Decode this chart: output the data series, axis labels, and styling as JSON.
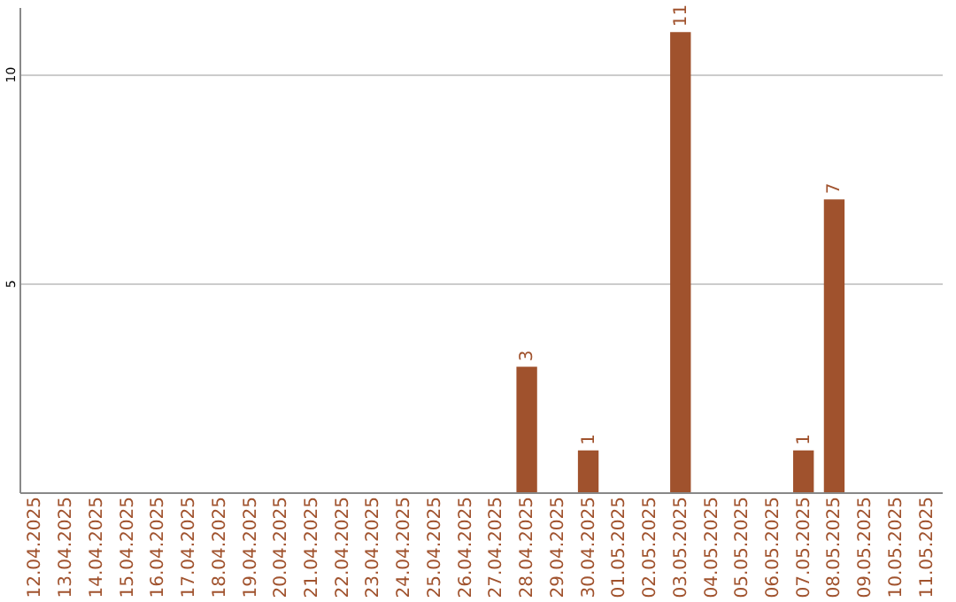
{
  "chart_data": {
    "type": "bar",
    "categories": [
      "12.04.2025",
      "13.04.2025",
      "14.04.2025",
      "15.04.2025",
      "16.04.2025",
      "17.04.2025",
      "18.04.2025",
      "19.04.2025",
      "20.04.2025",
      "21.04.2025",
      "22.04.2025",
      "23.04.2025",
      "24.04.2025",
      "25.04.2025",
      "26.04.2025",
      "27.04.2025",
      "28.04.2025",
      "29.04.2025",
      "30.04.2025",
      "01.05.2025",
      "02.05.2025",
      "03.05.2025",
      "04.05.2025",
      "05.05.2025",
      "06.05.2025",
      "07.05.2025",
      "08.05.2025",
      "09.05.2025",
      "10.05.2025",
      "11.05.2025"
    ],
    "values": [
      0,
      0,
      0,
      0,
      0,
      0,
      0,
      0,
      0,
      0,
      0,
      0,
      0,
      0,
      0,
      0,
      3,
      0,
      1,
      0,
      0,
      11,
      0,
      0,
      0,
      1,
      7,
      0,
      0,
      0
    ],
    "value_labels": [
      null,
      null,
      null,
      null,
      null,
      null,
      null,
      null,
      null,
      null,
      null,
      null,
      null,
      null,
      null,
      null,
      "3",
      null,
      "1",
      null,
      null,
      "11",
      null,
      null,
      null,
      "1",
      "7",
      null,
      null,
      null
    ],
    "color": "#a0522d",
    "ylim": [
      0,
      11.6
    ],
    "yticks": [
      5,
      10
    ],
    "grid": "y"
  }
}
